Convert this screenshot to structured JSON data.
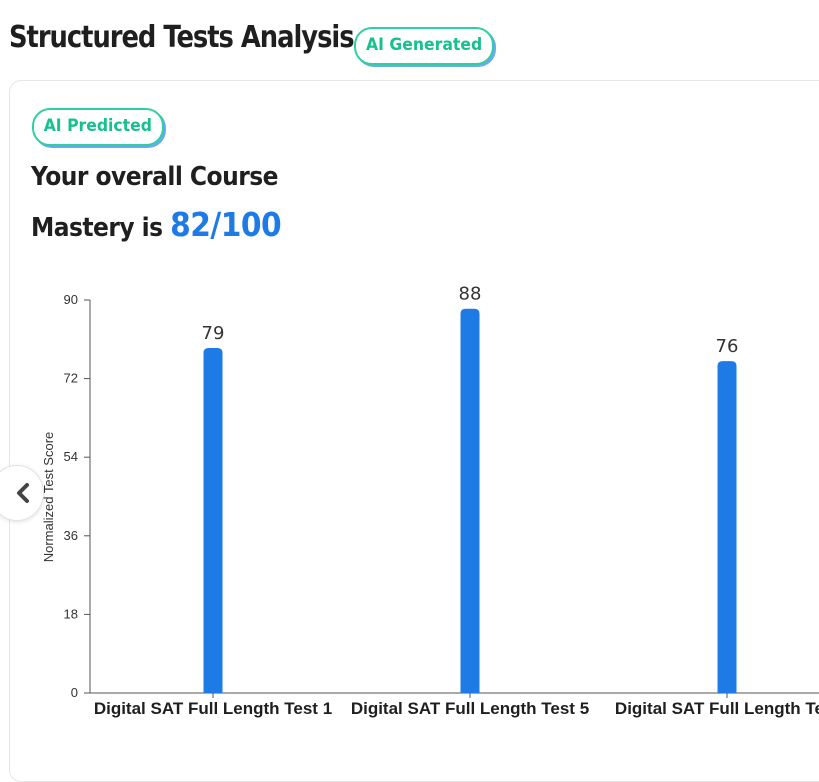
{
  "header": {
    "title": "Structured Tests Analysis",
    "badge": "AI Generated"
  },
  "card": {
    "badge": "AI Predicted",
    "mastery_line1": "Your overall Course",
    "mastery_line2_prefix": "Mastery is ",
    "mastery_score": "82/100"
  },
  "nav": {
    "prev_icon": "chevron-left-icon"
  },
  "colors": {
    "accent": "#1e7be6",
    "badge_green": "#17c08e",
    "bar": "#1e7be6"
  },
  "chart_data": {
    "type": "bar",
    "categories": [
      "Digital SAT Full Length Test 1",
      "Digital SAT Full Length Test 5",
      "Digital SAT Full Length Test"
    ],
    "values": [
      79,
      88,
      76
    ],
    "ylabel": "Normalized Test Score",
    "ylim": [
      0,
      90
    ],
    "yticks": [
      0,
      18,
      36,
      54,
      72,
      90
    ],
    "grid": false,
    "data_labels": true
  }
}
